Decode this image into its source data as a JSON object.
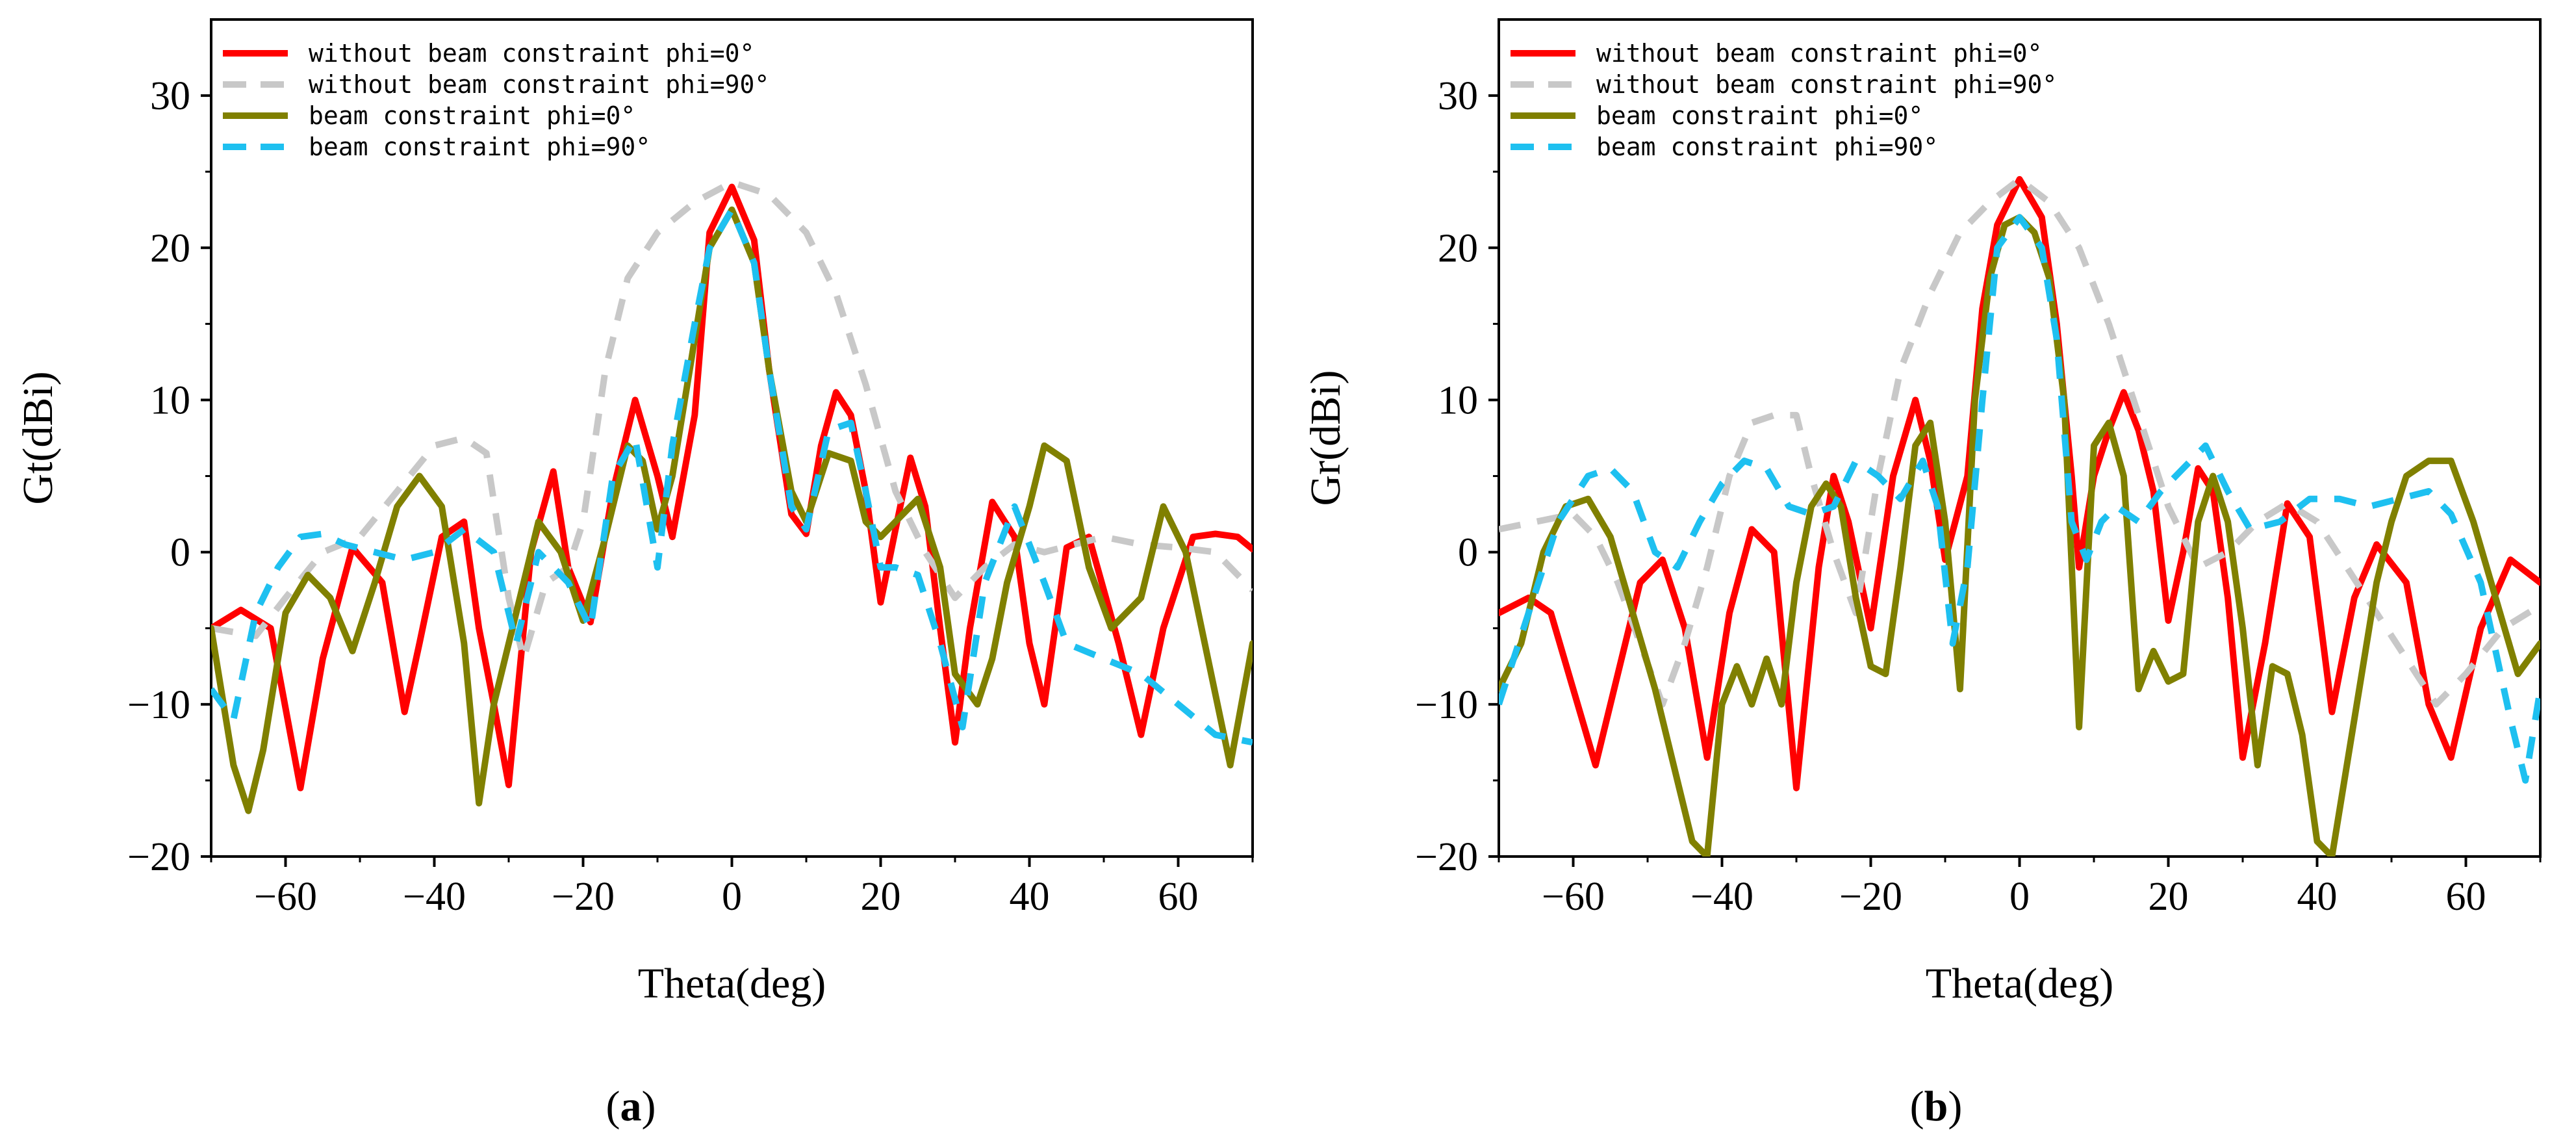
{
  "chart_data": [
    {
      "type": "line",
      "panel_label": "a",
      "xlabel": "Theta(deg)",
      "ylabel": "Gt(dBi)",
      "xlim": [
        -70,
        70
      ],
      "ylim": [
        -20,
        35
      ],
      "xticks": [
        -60,
        -40,
        -20,
        0,
        20,
        40,
        60
      ],
      "yticks": [
        -20,
        -10,
        0,
        10,
        20,
        30
      ],
      "xtick_labels": [
        "−60",
        "−40",
        "−20",
        "0",
        "20",
        "40",
        "60"
      ],
      "ytick_labels": [
        "−20",
        "−10",
        "0",
        "10",
        "20",
        "30"
      ],
      "legend_position": "top-left",
      "series": [
        {
          "name": "without beam constraint phi=0°",
          "color": "#ff0000",
          "dash": "solid",
          "x": [
            -70,
            -66,
            -62,
            -58,
            -55,
            -51,
            -47,
            -44,
            -42,
            -39,
            -36,
            -34,
            -32,
            -30,
            -27,
            -24,
            -22,
            -19,
            -16,
            -13,
            -10,
            -8,
            -5,
            -3,
            0,
            3,
            5,
            8,
            10,
            12,
            14,
            16,
            18,
            20,
            22,
            24,
            26,
            28,
            30,
            32,
            35,
            38,
            40,
            42,
            45,
            48,
            52,
            55,
            58,
            62,
            65,
            68,
            70
          ],
          "y": [
            -5,
            -3.8,
            -5,
            -15.5,
            -7,
            0.3,
            -2,
            -10.5,
            -6,
            1,
            2,
            -5,
            -10,
            -15.3,
            0,
            5.3,
            -1,
            -4.6,
            4,
            10,
            5,
            1,
            9,
            21,
            24,
            20.5,
            12,
            2.5,
            1.2,
            7,
            10.5,
            9,
            4,
            -3.3,
            1.5,
            6.2,
            3,
            -5,
            -12.5,
            -5,
            3.3,
            1,
            -6,
            -10,
            0.3,
            1,
            -6,
            -12,
            -5,
            1,
            1.2,
            1,
            0.2
          ]
        },
        {
          "name": "without beam constraint phi=90°",
          "color": "#c8c8c8",
          "dash": "dashed",
          "x": [
            -70,
            -64,
            -60,
            -55,
            -50,
            -45,
            -40,
            -36,
            -33,
            -30,
            -28,
            -25,
            -22,
            -20,
            -17,
            -14,
            -10,
            -5,
            0,
            5,
            10,
            14,
            18,
            22,
            26,
            30,
            34,
            38,
            42,
            46,
            50,
            55,
            60,
            65,
            70
          ],
          "y": [
            -5,
            -5.5,
            -3,
            0,
            1,
            4,
            7,
            7.5,
            6.5,
            -3,
            -7,
            -2,
            -1,
            2,
            12,
            18,
            21,
            23,
            24.3,
            23.5,
            21,
            17,
            11,
            4,
            0,
            -3,
            -1,
            0.5,
            0,
            0.5,
            1,
            0.5,
            0.3,
            0,
            -2.5
          ]
        },
        {
          "name": "beam constraint phi=0°",
          "color": "#808000",
          "dash": "solid",
          "x": [
            -70,
            -67,
            -65,
            -63,
            -60,
            -57,
            -54,
            -51,
            -48,
            -45,
            -42,
            -39,
            -36,
            -34,
            -32,
            -29,
            -26,
            -23,
            -20,
            -17,
            -14,
            -12,
            -10,
            -8,
            -5,
            -3,
            0,
            3,
            5,
            8,
            10,
            13,
            16,
            18,
            20,
            22,
            25,
            28,
            30,
            33,
            35,
            37,
            40,
            42,
            45,
            48,
            51,
            55,
            58,
            61,
            64,
            67,
            70
          ],
          "y": [
            -5,
            -14,
            -17,
            -13,
            -4,
            -1.5,
            -3,
            -6.5,
            -2,
            3,
            5,
            3,
            -6,
            -16.5,
            -10,
            -4,
            2,
            0,
            -4.5,
            1,
            7,
            6,
            1.5,
            5,
            14,
            20,
            22.5,
            19,
            12,
            4,
            2,
            6.5,
            6,
            2,
            1,
            2,
            3.5,
            -1,
            -8,
            -10,
            -7,
            -2,
            3,
            7,
            6,
            -1,
            -5,
            -3,
            3,
            0,
            -7,
            -14,
            -6
          ]
        },
        {
          "name": "beam constraint phi=90°",
          "color": "#1ec0f0",
          "dash": "dashed",
          "x": [
            -70,
            -67,
            -64,
            -61,
            -58,
            -55,
            -52,
            -48,
            -44,
            -40,
            -36,
            -32,
            -29,
            -26,
            -22,
            -19,
            -16,
            -13,
            -10,
            -8,
            -5,
            -3,
            0,
            3,
            5,
            8,
            10,
            13,
            16,
            18,
            20,
            22,
            25,
            28,
            31,
            34,
            38,
            42,
            45,
            50,
            55,
            60,
            65,
            70
          ],
          "y": [
            -9,
            -11,
            -4,
            -1,
            1,
            1.2,
            0.5,
            0,
            -0.5,
            0,
            1.5,
            0,
            -6,
            0,
            -2,
            -5,
            5,
            7.5,
            -1,
            7,
            15,
            20,
            22.5,
            19,
            12,
            3,
            1.5,
            8,
            8.5,
            4,
            -1,
            -1,
            -1.5,
            -6,
            -11.5,
            -2,
            3,
            -2,
            -6,
            -7,
            -8,
            -10,
            -12,
            -12.5
          ]
        }
      ]
    },
    {
      "type": "line",
      "panel_label": "b",
      "xlabel": "Theta(deg)",
      "ylabel": "Gr(dBi)",
      "xlim": [
        -70,
        70
      ],
      "ylim": [
        -20,
        35
      ],
      "xticks": [
        -60,
        -40,
        -20,
        0,
        20,
        40,
        60
      ],
      "yticks": [
        -20,
        -10,
        0,
        10,
        20,
        30
      ],
      "xtick_labels": [
        "−60",
        "−40",
        "−20",
        "0",
        "20",
        "40",
        "60"
      ],
      "ytick_labels": [
        "−20",
        "−10",
        "0",
        "10",
        "20",
        "30"
      ],
      "legend_position": "top-left",
      "series": [
        {
          "name": "without beam constraint phi=0°",
          "color": "#ff0000",
          "dash": "solid",
          "x": [
            -70,
            -66,
            -63,
            -60,
            -57,
            -54,
            -51,
            -48,
            -45,
            -42,
            -39,
            -36,
            -33,
            -30,
            -27,
            -25,
            -23,
            -20,
            -17,
            -14,
            -12,
            -10,
            -7,
            -5,
            -3,
            0,
            3,
            5,
            7,
            8,
            10,
            12,
            14,
            16,
            18,
            20,
            22,
            24,
            26,
            28,
            30,
            33,
            36,
            39,
            42,
            45,
            48,
            52,
            55,
            58,
            62,
            66,
            70
          ],
          "y": [
            -4,
            -3,
            -4,
            -9,
            -14,
            -8,
            -2,
            -0.5,
            -5,
            -13.5,
            -4,
            1.5,
            0,
            -15.5,
            -1,
            5,
            2,
            -5,
            5,
            10,
            6,
            -0.5,
            5,
            16,
            21.5,
            24.5,
            22,
            15,
            5,
            -1,
            5,
            8,
            10.5,
            8,
            4,
            -4.5,
            0,
            5.5,
            4,
            -3,
            -13.5,
            -6,
            3.2,
            1,
            -10.5,
            -3,
            0.5,
            -2,
            -10,
            -13.5,
            -5,
            -0.5,
            -2
          ]
        },
        {
          "name": "without beam constraint phi=90°",
          "color": "#c8c8c8",
          "dash": "dashed",
          "x": [
            -70,
            -65,
            -60,
            -57,
            -54,
            -51,
            -48,
            -45,
            -42,
            -39,
            -36,
            -33,
            -30,
            -28,
            -25,
            -22,
            -19,
            -16,
            -12,
            -8,
            -4,
            0,
            4,
            8,
            12,
            16,
            20,
            24,
            28,
            32,
            36,
            40,
            44,
            48,
            52,
            56,
            60,
            65,
            70
          ],
          "y": [
            1.5,
            2,
            2.5,
            1,
            -2,
            -6,
            -10,
            -6,
            -1,
            5,
            8.5,
            9,
            9,
            5,
            0,
            -4,
            5,
            12,
            17,
            21,
            23,
            24.5,
            23,
            20,
            15,
            9,
            3,
            -1,
            0,
            2,
            3.2,
            2,
            -1,
            -4,
            -7,
            -10,
            -8,
            -5,
            -3.5
          ]
        },
        {
          "name": "beam constraint phi=0°",
          "color": "#808000",
          "dash": "solid",
          "x": [
            -70,
            -67,
            -64,
            -61,
            -58,
            -55,
            -52,
            -49,
            -46,
            -44,
            -42,
            -40,
            -38,
            -36,
            -34,
            -32,
            -30,
            -28,
            -26,
            -24,
            -22,
            -20,
            -18,
            -16,
            -14,
            -12,
            -10,
            -8,
            -6,
            -4,
            -2,
            0,
            2,
            4,
            6,
            8,
            10,
            12,
            14,
            16,
            18,
            20,
            22,
            24,
            26,
            28,
            30,
            32,
            34,
            36,
            38,
            40,
            42,
            44,
            46,
            48,
            50,
            52,
            55,
            58,
            61,
            64,
            67,
            70
          ],
          "y": [
            -9,
            -6,
            0,
            3,
            3.5,
            1,
            -4,
            -9,
            -15,
            -19,
            -20,
            -10,
            -7.5,
            -10,
            -7,
            -10,
            -2,
            3,
            4.5,
            3,
            -3,
            -7.5,
            -8,
            -1,
            7,
            8.5,
            2,
            -9,
            10,
            18,
            21.5,
            22,
            21,
            18,
            10,
            -11.5,
            7,
            8.5,
            5,
            -9,
            -6.5,
            -8.5,
            -8,
            2,
            5,
            2,
            -5,
            -14,
            -7.5,
            -8,
            -12,
            -19,
            -20,
            -14,
            -8,
            -2,
            2,
            5,
            6,
            6,
            2,
            -3,
            -8,
            -6
          ]
        },
        {
          "name": "beam constraint phi=90°",
          "color": "#1ec0f0",
          "dash": "dashed",
          "x": [
            -70,
            -66,
            -62,
            -58,
            -55,
            -52,
            -49,
            -46,
            -43,
            -40,
            -37,
            -34,
            -31,
            -28,
            -25,
            -22,
            -19,
            -16,
            -13,
            -11,
            -9,
            -7,
            -5,
            -3,
            0,
            3,
            5,
            7,
            9,
            11,
            13,
            16,
            19,
            22,
            25,
            28,
            31,
            35,
            39,
            43,
            47,
            51,
            55,
            58,
            62,
            66,
            68,
            70
          ],
          "y": [
            -10,
            -4,
            2,
            5,
            5.5,
            4,
            0,
            -1,
            2,
            4.5,
            6,
            5.5,
            3,
            2.5,
            3,
            6,
            5,
            3.5,
            6,
            3,
            -6,
            -1,
            10,
            20,
            22,
            20,
            14,
            2,
            -0.5,
            2,
            3,
            2,
            4,
            5.5,
            7,
            4,
            1.5,
            2,
            3.5,
            3.5,
            3,
            3.5,
            4,
            2.5,
            -2,
            -11,
            -15,
            -9
          ]
        }
      ]
    }
  ]
}
